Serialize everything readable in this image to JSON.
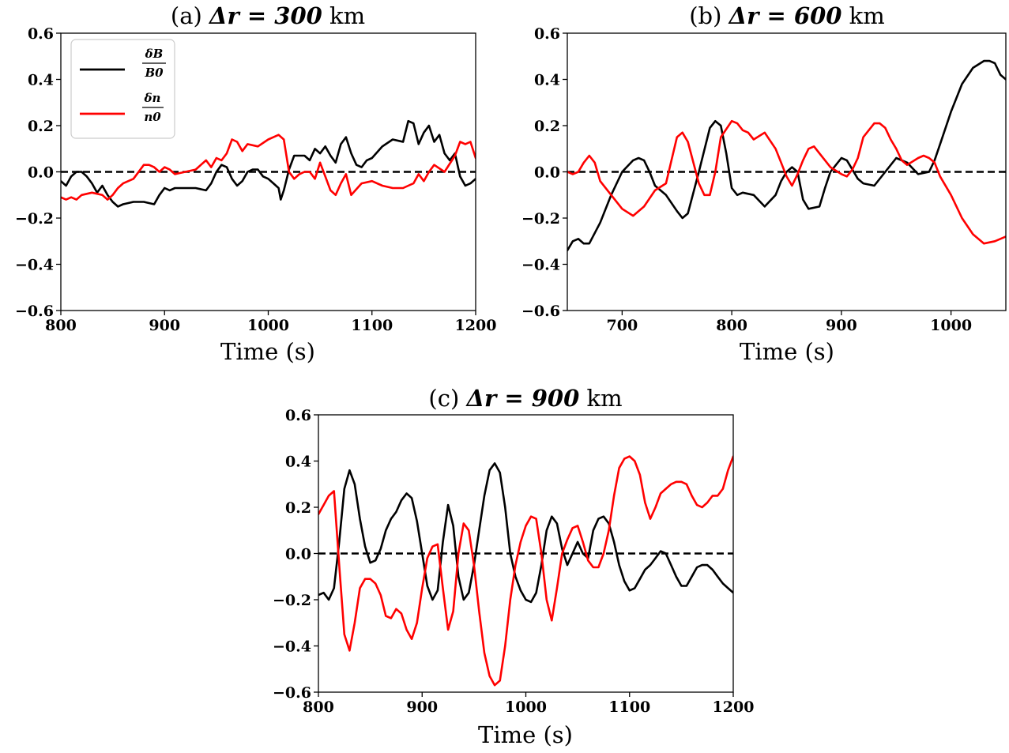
{
  "chart_data": [
    {
      "type": "line",
      "title_prefix": "(a) ",
      "title_bold": "Δr = 300",
      "title_suffix": " km",
      "xlabel": "Time (s)",
      "ylabel": "",
      "xlim": [
        800,
        1200
      ],
      "ylim": [
        -0.6,
        0.6
      ],
      "xticks": [
        800,
        900,
        1000,
        1100,
        1200
      ],
      "yticks": [
        -0.6,
        -0.4,
        -0.2,
        0.0,
        0.2,
        0.4,
        0.6
      ],
      "xtick_labels": [
        "800",
        "900",
        "1000",
        "1100",
        "1200"
      ],
      "ytick_labels": [
        "−0.6",
        "−0.4",
        "−0.2",
        "0.0",
        "0.2",
        "0.4",
        "0.6"
      ],
      "zero_line": "dashed",
      "legend": {
        "position": "top-left",
        "entries": [
          {
            "color": "#000000",
            "num": "δB",
            "den": "B0"
          },
          {
            "color": "#ff0000",
            "num": "δn",
            "den": "n0"
          }
        ]
      },
      "series": [
        {
          "name": "δB/B0",
          "color": "#000000",
          "x": [
            800,
            805,
            810,
            815,
            820,
            825,
            830,
            835,
            840,
            845,
            850,
            855,
            860,
            870,
            880,
            890,
            895,
            900,
            905,
            910,
            920,
            930,
            940,
            945,
            950,
            955,
            960,
            965,
            970,
            975,
            980,
            985,
            990,
            995,
            1000,
            1005,
            1010,
            1012,
            1015,
            1020,
            1025,
            1030,
            1035,
            1040,
            1045,
            1050,
            1055,
            1060,
            1065,
            1070,
            1075,
            1080,
            1085,
            1090,
            1095,
            1100,
            1110,
            1120,
            1130,
            1135,
            1140,
            1145,
            1150,
            1155,
            1160,
            1165,
            1170,
            1175,
            1180,
            1185,
            1190,
            1195,
            1200
          ],
          "y": [
            -0.04,
            -0.06,
            -0.02,
            0.0,
            0.0,
            -0.02,
            -0.05,
            -0.09,
            -0.06,
            -0.1,
            -0.13,
            -0.15,
            -0.14,
            -0.13,
            -0.13,
            -0.14,
            -0.1,
            -0.07,
            -0.08,
            -0.07,
            -0.07,
            -0.07,
            -0.08,
            -0.05,
            0.0,
            0.03,
            0.02,
            -0.03,
            -0.06,
            -0.04,
            0.0,
            0.01,
            0.01,
            -0.02,
            -0.03,
            -0.05,
            -0.07,
            -0.12,
            -0.08,
            0.01,
            0.07,
            0.07,
            0.07,
            0.05,
            0.1,
            0.08,
            0.11,
            0.07,
            0.04,
            0.12,
            0.15,
            0.08,
            0.03,
            0.02,
            0.05,
            0.06,
            0.11,
            0.14,
            0.13,
            0.22,
            0.21,
            0.12,
            0.17,
            0.2,
            0.13,
            0.16,
            0.08,
            0.05,
            0.08,
            -0.02,
            -0.06,
            -0.05,
            -0.03
          ]
        },
        {
          "name": "δn/n0",
          "color": "#ff0000",
          "x": [
            800,
            805,
            810,
            815,
            820,
            830,
            840,
            845,
            850,
            855,
            860,
            870,
            880,
            885,
            890,
            895,
            900,
            905,
            910,
            920,
            930,
            935,
            940,
            945,
            950,
            955,
            960,
            965,
            970,
            975,
            980,
            990,
            1000,
            1005,
            1010,
            1015,
            1020,
            1025,
            1030,
            1035,
            1040,
            1045,
            1050,
            1055,
            1060,
            1065,
            1070,
            1075,
            1080,
            1090,
            1100,
            1110,
            1120,
            1130,
            1135,
            1140,
            1145,
            1150,
            1155,
            1160,
            1170,
            1180,
            1185,
            1190,
            1195,
            1200
          ],
          "y": [
            -0.11,
            -0.12,
            -0.11,
            -0.12,
            -0.1,
            -0.09,
            -0.1,
            -0.12,
            -0.1,
            -0.07,
            -0.05,
            -0.03,
            0.03,
            0.03,
            0.02,
            0.0,
            0.02,
            0.01,
            -0.01,
            0.0,
            0.01,
            0.03,
            0.05,
            0.02,
            0.06,
            0.05,
            0.08,
            0.14,
            0.13,
            0.09,
            0.12,
            0.11,
            0.14,
            0.15,
            0.16,
            0.14,
            0.0,
            -0.03,
            -0.01,
            0.0,
            0.0,
            -0.03,
            0.04,
            -0.02,
            -0.08,
            -0.1,
            -0.05,
            -0.01,
            -0.1,
            -0.05,
            -0.04,
            -0.06,
            -0.07,
            -0.07,
            -0.06,
            -0.05,
            -0.01,
            -0.04,
            0.0,
            0.03,
            0.0,
            0.07,
            0.13,
            0.12,
            0.13,
            0.06
          ]
        }
      ]
    },
    {
      "type": "line",
      "title_prefix": "(b) ",
      "title_bold": "Δr = 600",
      "title_suffix": " km",
      "xlabel": "Time (s)",
      "ylabel": "",
      "xlim": [
        650,
        1050
      ],
      "ylim": [
        -0.6,
        0.6
      ],
      "xticks": [
        700,
        800,
        900,
        1000
      ],
      "yticks": [
        -0.6,
        -0.4,
        -0.2,
        0.0,
        0.2,
        0.4,
        0.6
      ],
      "xtick_labels": [
        "700",
        "800",
        "900",
        "1000"
      ],
      "ytick_labels": [
        "−0.6",
        "−0.4",
        "−0.2",
        "0.0",
        "0.2",
        "0.4",
        "0.6"
      ],
      "zero_line": "dashed",
      "series": [
        {
          "name": "δB/B0",
          "color": "#000000",
          "x": [
            650,
            655,
            660,
            665,
            670,
            680,
            690,
            700,
            710,
            715,
            720,
            725,
            730,
            740,
            750,
            755,
            760,
            770,
            780,
            785,
            790,
            795,
            800,
            805,
            810,
            820,
            830,
            840,
            845,
            850,
            855,
            860,
            865,
            870,
            880,
            885,
            890,
            900,
            905,
            910,
            915,
            920,
            930,
            940,
            950,
            960,
            970,
            980,
            985,
            990,
            1000,
            1010,
            1020,
            1030,
            1035,
            1040,
            1045,
            1050
          ],
          "y": [
            -0.34,
            -0.3,
            -0.29,
            -0.31,
            -0.31,
            -0.22,
            -0.1,
            0.0,
            0.05,
            0.06,
            0.05,
            0.0,
            -0.06,
            -0.1,
            -0.17,
            -0.2,
            -0.18,
            0.0,
            0.19,
            0.22,
            0.2,
            0.08,
            -0.07,
            -0.1,
            -0.09,
            -0.1,
            -0.15,
            -0.1,
            -0.04,
            0.0,
            0.02,
            0.0,
            -0.12,
            -0.16,
            -0.15,
            -0.07,
            0.0,
            0.06,
            0.05,
            0.01,
            -0.03,
            -0.05,
            -0.06,
            0.0,
            0.06,
            0.04,
            -0.01,
            0.0,
            0.05,
            0.12,
            0.26,
            0.38,
            0.45,
            0.48,
            0.48,
            0.47,
            0.42,
            0.4
          ]
        },
        {
          "name": "δn/n0",
          "color": "#ff0000",
          "x": [
            650,
            655,
            660,
            665,
            670,
            675,
            680,
            690,
            700,
            710,
            720,
            730,
            740,
            745,
            750,
            755,
            760,
            770,
            775,
            780,
            785,
            790,
            800,
            805,
            810,
            815,
            820,
            830,
            840,
            845,
            850,
            855,
            860,
            865,
            870,
            875,
            880,
            890,
            900,
            905,
            910,
            915,
            920,
            930,
            935,
            940,
            945,
            950,
            955,
            960,
            970,
            975,
            980,
            985,
            990,
            1000,
            1010,
            1020,
            1030,
            1040,
            1050
          ],
          "y": [
            0.0,
            -0.01,
            0.0,
            0.04,
            0.07,
            0.04,
            -0.04,
            -0.1,
            -0.16,
            -0.19,
            -0.15,
            -0.08,
            -0.05,
            0.05,
            0.15,
            0.17,
            0.13,
            -0.05,
            -0.1,
            -0.1,
            0.0,
            0.15,
            0.22,
            0.21,
            0.18,
            0.17,
            0.14,
            0.17,
            0.1,
            0.04,
            -0.02,
            -0.06,
            -0.01,
            0.05,
            0.1,
            0.11,
            0.08,
            0.02,
            -0.01,
            -0.02,
            0.01,
            0.06,
            0.15,
            0.21,
            0.21,
            0.19,
            0.14,
            0.1,
            0.05,
            0.03,
            0.06,
            0.07,
            0.06,
            0.04,
            -0.02,
            -0.1,
            -0.2,
            -0.27,
            -0.31,
            -0.3,
            -0.28
          ]
        }
      ]
    },
    {
      "type": "line",
      "title_prefix": "(c) ",
      "title_bold": "Δr = 900",
      "title_suffix": " km",
      "xlabel": "Time (s)",
      "ylabel": "",
      "xlim": [
        800,
        1200
      ],
      "ylim": [
        -0.6,
        0.6
      ],
      "xticks": [
        800,
        900,
        1000,
        1100,
        1200
      ],
      "yticks": [
        -0.6,
        -0.4,
        -0.2,
        0.0,
        0.2,
        0.4,
        0.6
      ],
      "xtick_labels": [
        "800",
        "900",
        "1000",
        "1100",
        "1200"
      ],
      "ytick_labels": [
        "−0.6",
        "−0.4",
        "−0.2",
        "0.0",
        "0.2",
        "0.4",
        "0.6"
      ],
      "zero_line": "dashed",
      "series": [
        {
          "name": "δB/B0",
          "color": "#000000",
          "x": [
            800,
            805,
            810,
            815,
            820,
            825,
            830,
            835,
            840,
            845,
            850,
            855,
            860,
            865,
            870,
            875,
            880,
            885,
            890,
            895,
            900,
            905,
            910,
            915,
            920,
            925,
            930,
            935,
            940,
            945,
            950,
            955,
            960,
            965,
            970,
            975,
            980,
            985,
            990,
            995,
            1000,
            1005,
            1010,
            1015,
            1020,
            1025,
            1030,
            1035,
            1040,
            1045,
            1050,
            1055,
            1060,
            1065,
            1070,
            1075,
            1080,
            1085,
            1090,
            1095,
            1100,
            1105,
            1110,
            1115,
            1120,
            1125,
            1130,
            1135,
            1140,
            1145,
            1150,
            1155,
            1160,
            1165,
            1170,
            1175,
            1180,
            1185,
            1190,
            1195,
            1200
          ],
          "y": [
            -0.18,
            -0.17,
            -0.2,
            -0.15,
            0.05,
            0.28,
            0.36,
            0.3,
            0.15,
            0.03,
            -0.04,
            -0.03,
            0.02,
            0.1,
            0.15,
            0.18,
            0.23,
            0.26,
            0.24,
            0.14,
            0.0,
            -0.14,
            -0.2,
            -0.16,
            0.05,
            0.21,
            0.12,
            -0.1,
            -0.2,
            -0.17,
            -0.05,
            0.1,
            0.25,
            0.36,
            0.39,
            0.35,
            0.2,
            0.0,
            -0.1,
            -0.16,
            -0.2,
            -0.21,
            -0.17,
            -0.05,
            0.1,
            0.16,
            0.13,
            0.02,
            -0.05,
            0.0,
            0.05,
            0.0,
            -0.02,
            0.1,
            0.15,
            0.16,
            0.13,
            0.05,
            -0.05,
            -0.12,
            -0.16,
            -0.15,
            -0.11,
            -0.07,
            -0.05,
            -0.02,
            0.01,
            0.0,
            -0.05,
            -0.1,
            -0.14,
            -0.14,
            -0.1,
            -0.06,
            -0.05,
            -0.05,
            -0.07,
            -0.1,
            -0.13,
            -0.15,
            -0.17
          ]
        },
        {
          "name": "δn/n0",
          "color": "#ff0000",
          "x": [
            800,
            805,
            810,
            815,
            820,
            825,
            830,
            835,
            840,
            845,
            850,
            855,
            860,
            865,
            870,
            875,
            880,
            885,
            890,
            895,
            900,
            905,
            910,
            915,
            920,
            925,
            930,
            935,
            940,
            945,
            950,
            955,
            960,
            965,
            970,
            975,
            980,
            985,
            990,
            995,
            1000,
            1005,
            1010,
            1015,
            1020,
            1025,
            1030,
            1035,
            1040,
            1045,
            1050,
            1055,
            1060,
            1065,
            1070,
            1075,
            1080,
            1085,
            1090,
            1095,
            1100,
            1105,
            1110,
            1115,
            1120,
            1125,
            1130,
            1135,
            1140,
            1145,
            1150,
            1155,
            1160,
            1165,
            1170,
            1175,
            1180,
            1185,
            1190,
            1195,
            1200
          ],
          "y": [
            0.17,
            0.21,
            0.25,
            0.27,
            -0.05,
            -0.35,
            -0.42,
            -0.3,
            -0.15,
            -0.11,
            -0.11,
            -0.13,
            -0.18,
            -0.27,
            -0.28,
            -0.24,
            -0.26,
            -0.33,
            -0.37,
            -0.3,
            -0.15,
            -0.02,
            0.03,
            0.04,
            -0.15,
            -0.33,
            -0.25,
            0.0,
            0.13,
            0.1,
            -0.05,
            -0.25,
            -0.43,
            -0.53,
            -0.57,
            -0.55,
            -0.4,
            -0.2,
            -0.05,
            0.05,
            0.12,
            0.16,
            0.15,
            0.0,
            -0.2,
            -0.29,
            -0.15,
            0.0,
            0.06,
            0.11,
            0.12,
            0.05,
            -0.03,
            -0.06,
            -0.06,
            0.0,
            0.1,
            0.25,
            0.37,
            0.41,
            0.42,
            0.4,
            0.34,
            0.22,
            0.15,
            0.2,
            0.26,
            0.28,
            0.3,
            0.31,
            0.31,
            0.3,
            0.25,
            0.21,
            0.2,
            0.22,
            0.25,
            0.25,
            0.28,
            0.36,
            0.42
          ]
        }
      ]
    }
  ]
}
